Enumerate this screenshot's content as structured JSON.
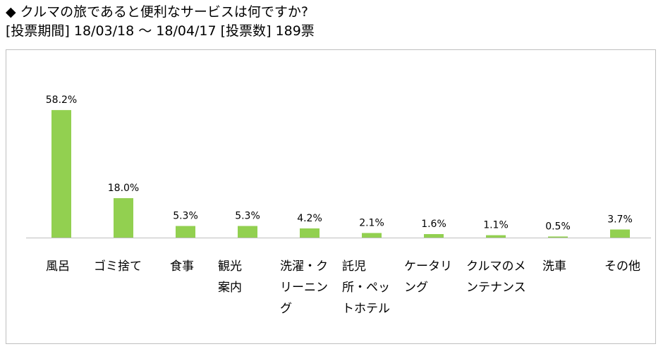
{
  "header": {
    "title": "◆ クルマの旅であると便利なサービスは何ですか?",
    "subtitle": "[投票期間] 18/03/18 ～ 18/04/17 [投票数] 189票"
  },
  "chart_data": {
    "type": "bar",
    "title": "クルマの旅であると便利なサービスは何ですか?",
    "xlabel": "",
    "ylabel": "",
    "ylim": [
      0,
      65
    ],
    "grid": false,
    "legend": "none",
    "colors": {
      "bar": "#92d050",
      "axis": "#bfbfbf"
    },
    "categories": [
      [
        "風呂"
      ],
      [
        "ゴミ捨て"
      ],
      [
        "食事"
      ],
      [
        "観光",
        "案内"
      ],
      [
        "洗濯・ク",
        "リーニン",
        "グ"
      ],
      [
        "託児",
        "所・ペッ",
        "トホテル"
      ],
      [
        "ケータリ",
        "ング"
      ],
      [
        "クルマのメ",
        "ンテナンス"
      ],
      [
        "洗車"
      ],
      [
        "その他"
      ]
    ],
    "values": [
      58.2,
      18.0,
      5.3,
      5.3,
      4.2,
      2.1,
      1.6,
      1.1,
      0.5,
      3.7
    ],
    "value_labels": [
      "58.2%",
      "18.0%",
      "5.3%",
      "5.3%",
      "4.2%",
      "2.1%",
      "1.6%",
      "1.1%",
      "0.5%",
      "3.7%"
    ]
  }
}
